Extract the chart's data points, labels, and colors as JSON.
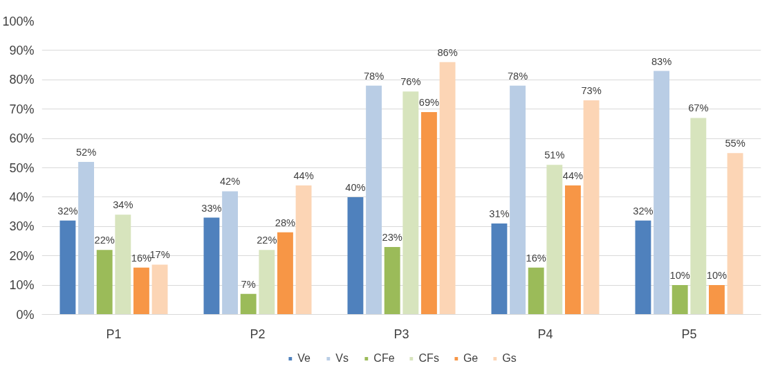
{
  "chart_data": {
    "type": "bar",
    "categories": [
      "P1",
      "P2",
      "P3",
      "P4",
      "P5"
    ],
    "series": [
      {
        "name": "Ve",
        "color": "#4f81bd",
        "values": [
          32,
          33,
          40,
          31,
          32
        ],
        "value_labels": [
          "32%",
          "33%",
          "40%",
          "31%",
          "32%"
        ]
      },
      {
        "name": "Vs",
        "color": "#b9cde5",
        "values": [
          52,
          42,
          78,
          78,
          83
        ],
        "value_labels": [
          "52%",
          "42%",
          "78%",
          "78%",
          "83%"
        ]
      },
      {
        "name": "CFe",
        "color": "#9bbb59",
        "values": [
          22,
          7,
          23,
          16,
          10
        ],
        "value_labels": [
          "22%",
          "7%",
          "23%",
          "16%",
          "10%"
        ]
      },
      {
        "name": "CFs",
        "color": "#d7e4bd",
        "values": [
          34,
          22,
          76,
          51,
          67
        ],
        "value_labels": [
          "34%",
          "22%",
          "76%",
          "51%",
          "67%"
        ]
      },
      {
        "name": "Ge",
        "color": "#f79646",
        "values": [
          16,
          28,
          69,
          44,
          10
        ],
        "value_labels": [
          "16%",
          "28%",
          "69%",
          "44%",
          "10%"
        ]
      },
      {
        "name": "Gs",
        "color": "#fcd5b5",
        "values": [
          17,
          44,
          86,
          73,
          55
        ],
        "value_labels": [
          "17%",
          "44%",
          "86%",
          "73%",
          "55%"
        ]
      }
    ],
    "ylim": [
      0,
      100
    ],
    "yticks": [
      {
        "value": 0,
        "label": "0%"
      },
      {
        "value": 10,
        "label": "10%"
      },
      {
        "value": 20,
        "label": "20%"
      },
      {
        "value": 30,
        "label": "30%"
      },
      {
        "value": 40,
        "label": "40%"
      },
      {
        "value": 50,
        "label": "50%"
      },
      {
        "value": 60,
        "label": "60%"
      },
      {
        "value": 70,
        "label": "70%"
      },
      {
        "value": 80,
        "label": "80%"
      },
      {
        "value": 90,
        "label": "90%"
      },
      {
        "value": 100,
        "label": "100%"
      }
    ],
    "grid": "y",
    "legend": "bottom"
  }
}
